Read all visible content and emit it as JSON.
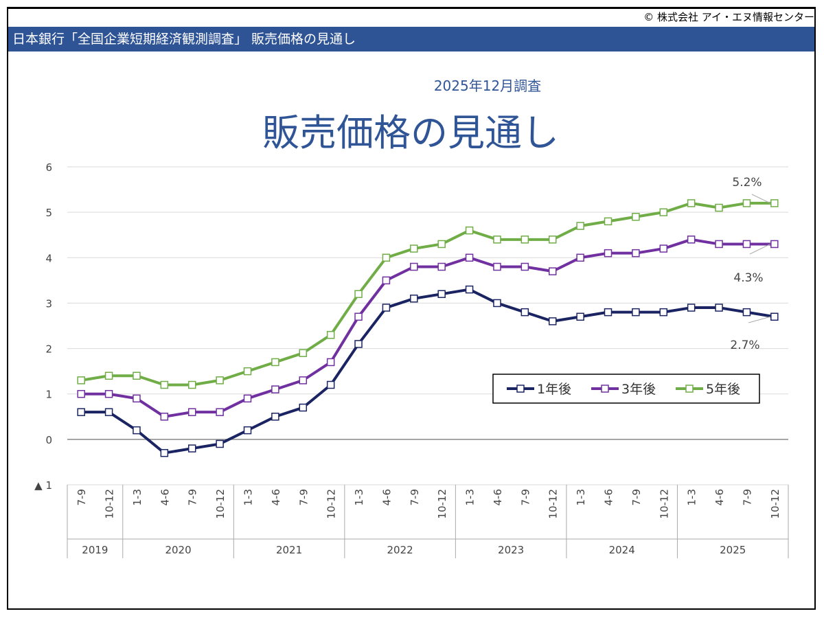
{
  "copyright": "© 株式会社 アイ・エヌ情報センター",
  "header": {
    "title": "日本銀行「全国企業短期経済観測調査」 販売価格の見通し"
  },
  "chart_data": {
    "type": "line",
    "subtitle": "2025年12月調査",
    "title": "販売価格の見通し",
    "ylim": [
      -1,
      6
    ],
    "yticks": [
      6,
      5,
      4,
      3,
      2,
      1,
      0,
      -1
    ],
    "ytick_labels": [
      "6",
      "5",
      "4",
      "3",
      "2",
      "1",
      "0",
      "▲ 1"
    ],
    "grid": true,
    "legend_placement": "center-right",
    "years": [
      {
        "label": "2019",
        "quarters": [
          "7-9",
          "10-12"
        ]
      },
      {
        "label": "2020",
        "quarters": [
          "1-3",
          "4-6",
          "7-9",
          "10-12"
        ]
      },
      {
        "label": "2021",
        "quarters": [
          "1-3",
          "4-6",
          "7-9",
          "10-12"
        ]
      },
      {
        "label": "2022",
        "quarters": [
          "1-3",
          "4-6",
          "7-9",
          "10-12"
        ]
      },
      {
        "label": "2023",
        "quarters": [
          "1-3",
          "4-6",
          "7-9",
          "10-12"
        ]
      },
      {
        "label": "2024",
        "quarters": [
          "1-3",
          "4-6",
          "7-9",
          "10-12"
        ]
      },
      {
        "label": "2025",
        "quarters": [
          "1-3",
          "4-6",
          "7-9",
          "10-12"
        ]
      }
    ],
    "series": [
      {
        "name": "1年後",
        "color": "#1b2462",
        "end_label": "2.7%",
        "values": [
          0.6,
          0.6,
          0.2,
          -0.3,
          -0.2,
          -0.1,
          0.2,
          0.5,
          0.7,
          1.2,
          2.1,
          2.9,
          3.1,
          3.2,
          3.3,
          3.0,
          2.8,
          2.6,
          2.7,
          2.8,
          2.8,
          2.8,
          2.9,
          2.9,
          2.8,
          2.7
        ]
      },
      {
        "name": "3年後",
        "color": "#7030a0",
        "end_label": "4.3%",
        "values": [
          1.0,
          1.0,
          0.9,
          0.5,
          0.6,
          0.6,
          0.9,
          1.1,
          1.3,
          1.7,
          2.7,
          3.5,
          3.8,
          3.8,
          4.0,
          3.8,
          3.8,
          3.7,
          4.0,
          4.1,
          4.1,
          4.2,
          4.4,
          4.3,
          4.3,
          4.3
        ]
      },
      {
        "name": "5年後",
        "color": "#70ad47",
        "end_label": "5.2%",
        "values": [
          1.3,
          1.4,
          1.4,
          1.2,
          1.2,
          1.3,
          1.5,
          1.7,
          1.9,
          2.3,
          3.2,
          4.0,
          4.2,
          4.3,
          4.6,
          4.4,
          4.4,
          4.4,
          4.7,
          4.8,
          4.9,
          5.0,
          5.2,
          5.1,
          5.2,
          5.2
        ]
      }
    ]
  }
}
